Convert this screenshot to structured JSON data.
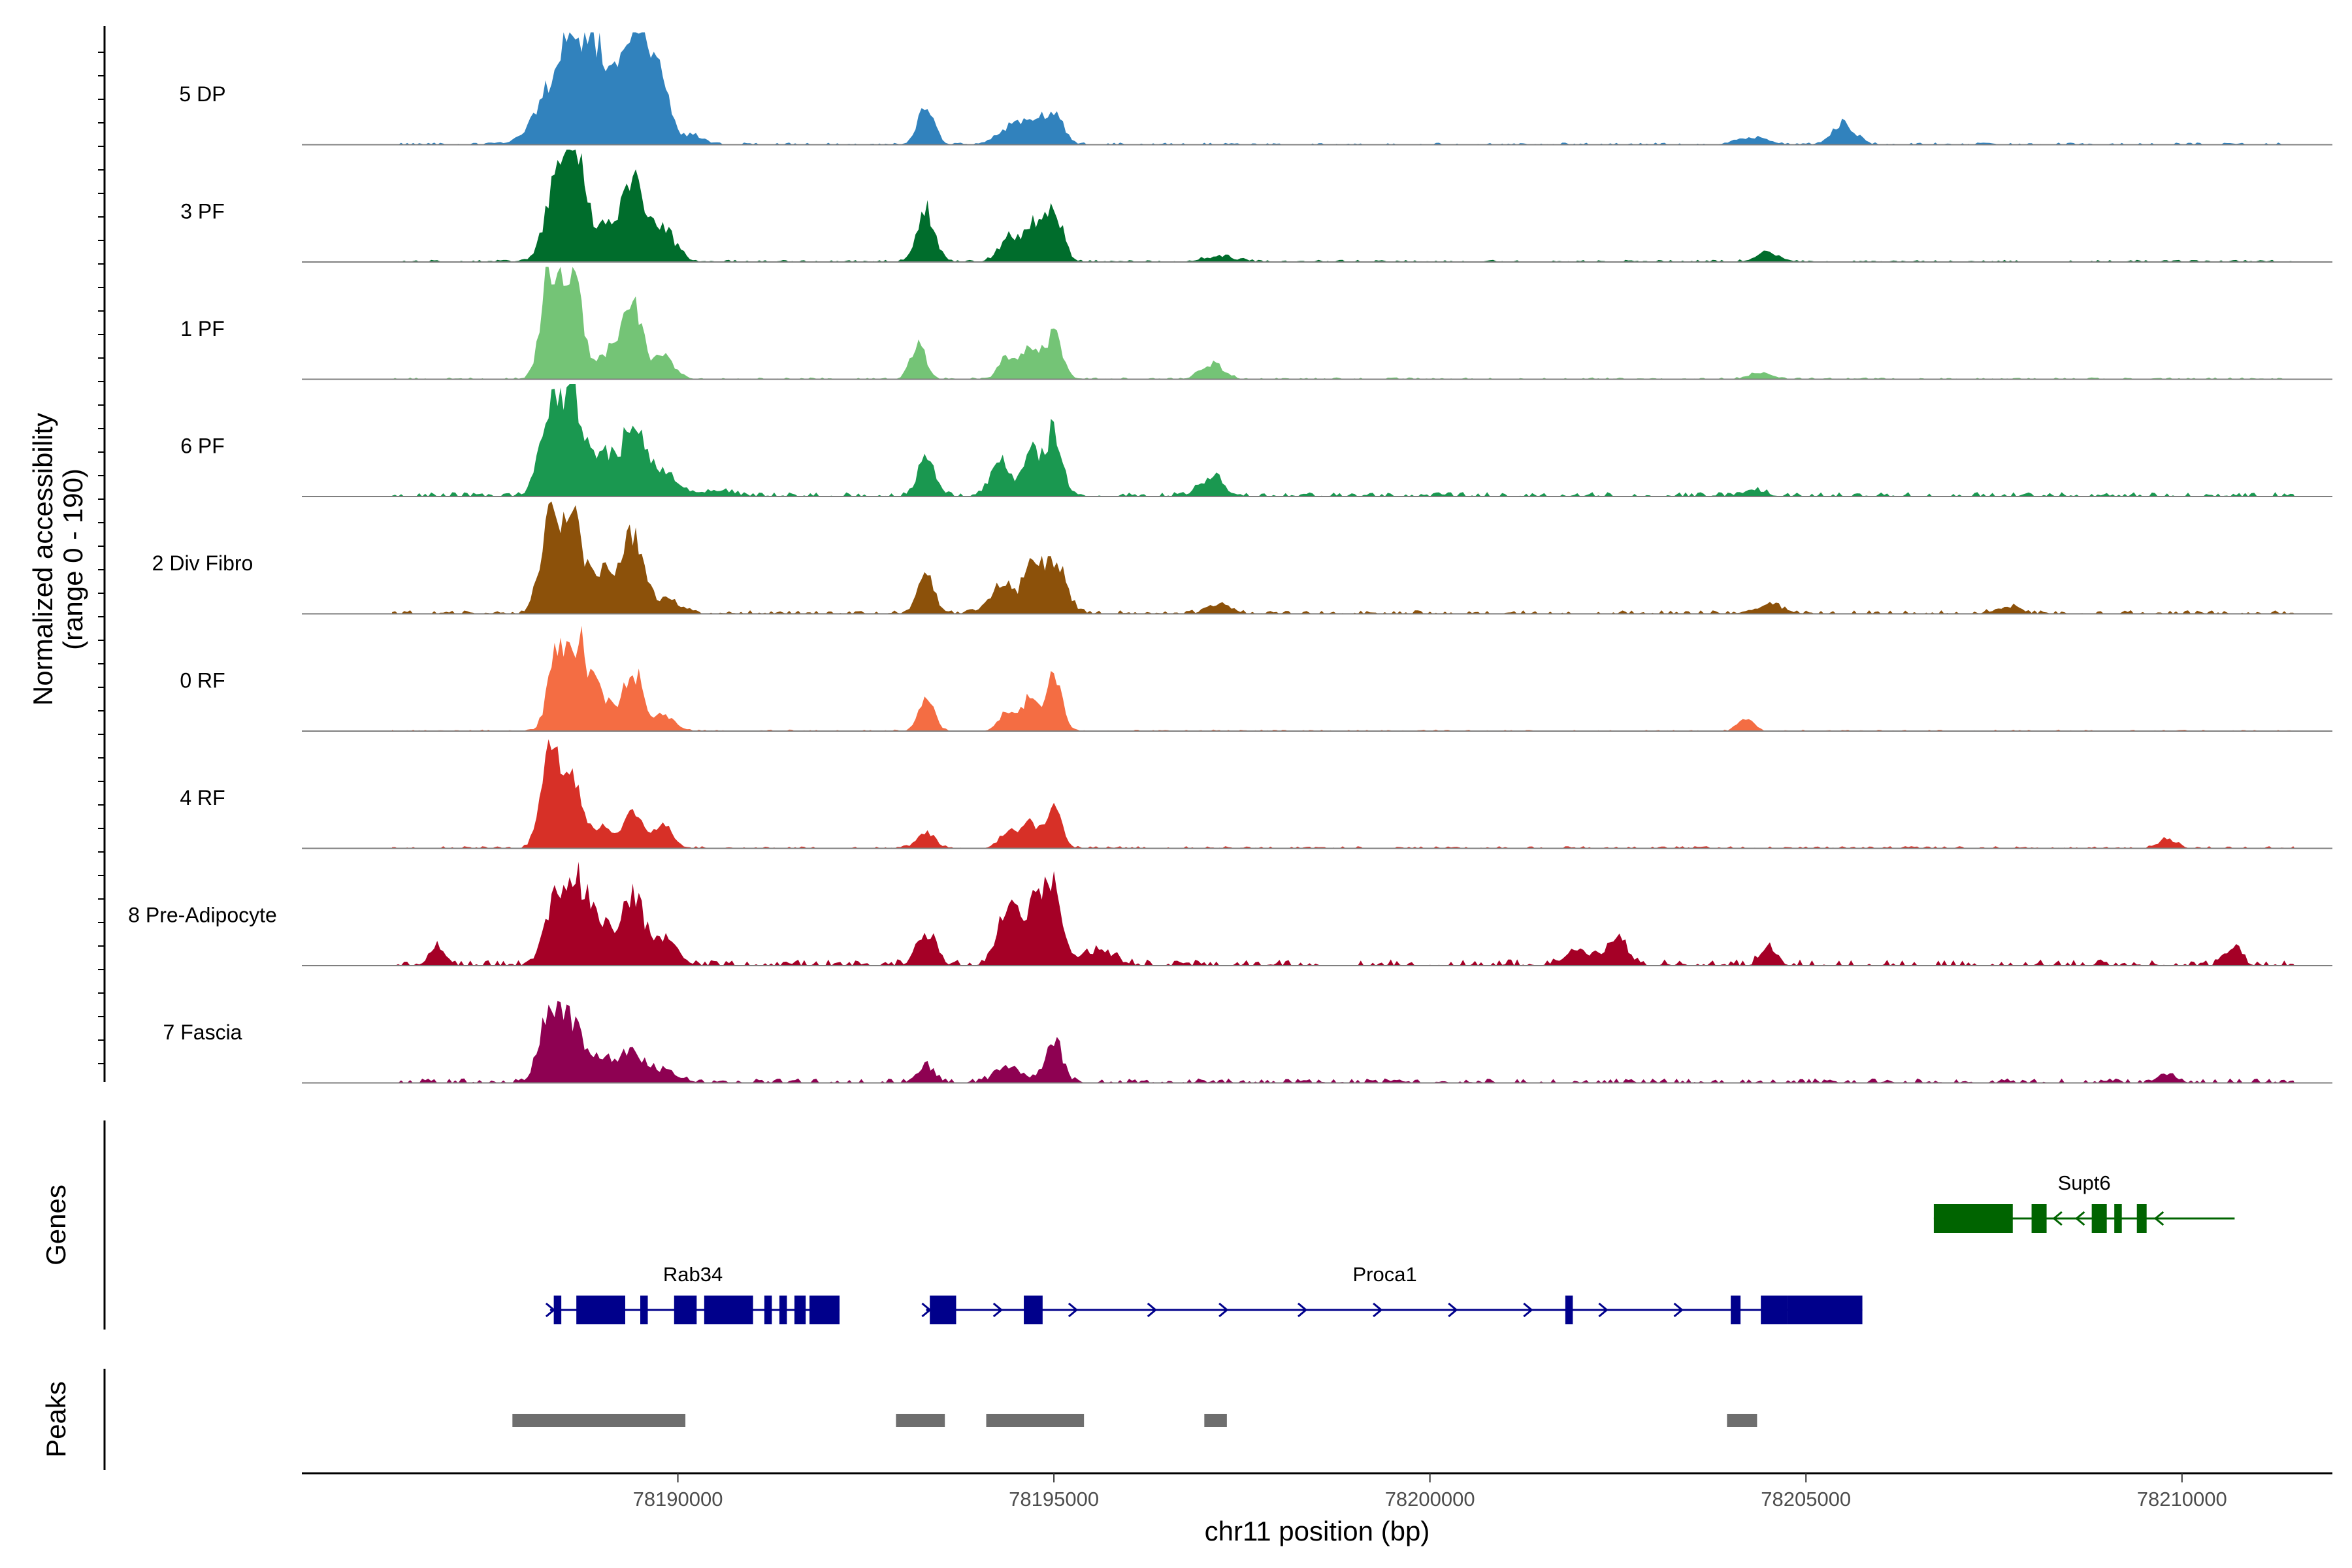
{
  "chart_data": {
    "type": "area",
    "y_axis_title_line1": "Normalized accessibility",
    "y_axis_title_line2": "(range 0 - 190)",
    "y_range": [
      0,
      190
    ],
    "x_axis_title": "chr11 position (bp)",
    "x_range": [
      78185000,
      78212000
    ],
    "x_ticks": [
      "78190000",
      "78195000",
      "78200000",
      "78205000",
      "78210000"
    ],
    "x_tick_values": [
      78190000,
      78195000,
      78200000,
      78205000,
      78210000
    ],
    "data_x_range": [
      78186200,
      78211500
    ],
    "tracks": [
      {
        "name": "5 DP",
        "color": "#3182bd",
        "noise": 0.012,
        "peaks": [
          [
            78188400,
            260,
            0.5
          ],
          [
            78188700,
            220,
            0.62
          ],
          [
            78189000,
            180,
            0.45
          ],
          [
            78189300,
            140,
            0.3
          ],
          [
            78189500,
            160,
            0.95
          ],
          [
            78189800,
            120,
            0.4
          ],
          [
            78190200,
            150,
            0.08
          ],
          [
            78193300,
            110,
            0.34
          ],
          [
            78194400,
            160,
            0.15
          ],
          [
            78194700,
            140,
            0.18
          ],
          [
            78195000,
            120,
            0.28
          ],
          [
            78204300,
            200,
            0.07
          ],
          [
            78205500,
            150,
            0.19
          ]
        ]
      },
      {
        "name": "3 PF",
        "color": "#006d2c",
        "noise": 0.012,
        "peaks": [
          [
            78188400,
            150,
            0.8
          ],
          [
            78188650,
            120,
            0.95
          ],
          [
            78189000,
            150,
            0.28
          ],
          [
            78189400,
            150,
            0.7
          ],
          [
            78189800,
            170,
            0.28
          ],
          [
            78193300,
            120,
            0.45
          ],
          [
            78194400,
            130,
            0.22
          ],
          [
            78194700,
            110,
            0.32
          ],
          [
            78195000,
            120,
            0.45
          ],
          [
            78197200,
            200,
            0.05
          ],
          [
            78204500,
            160,
            0.08
          ]
        ]
      },
      {
        "name": "1 PF",
        "color": "#74c476",
        "noise": 0.01,
        "peaks": [
          [
            78188300,
            120,
            0.95
          ],
          [
            78188600,
            130,
            0.92
          ],
          [
            78189100,
            140,
            0.25
          ],
          [
            78189400,
            120,
            0.68
          ],
          [
            78189800,
            150,
            0.2
          ],
          [
            78193200,
            100,
            0.32
          ],
          [
            78194400,
            120,
            0.2
          ],
          [
            78194700,
            100,
            0.3
          ],
          [
            78195000,
            110,
            0.42
          ],
          [
            78197100,
            150,
            0.14
          ],
          [
            78204400,
            150,
            0.06
          ]
        ]
      },
      {
        "name": "6 PF",
        "color": "#1a9850",
        "noise": 0.025,
        "peaks": [
          [
            78188300,
            140,
            0.75
          ],
          [
            78188600,
            140,
            0.82
          ],
          [
            78189000,
            140,
            0.38
          ],
          [
            78189400,
            140,
            0.68
          ],
          [
            78189800,
            180,
            0.22
          ],
          [
            78190500,
            220,
            0.05
          ],
          [
            78193300,
            110,
            0.38
          ],
          [
            78194300,
            130,
            0.3
          ],
          [
            78194700,
            110,
            0.4
          ],
          [
            78195000,
            110,
            0.56
          ],
          [
            78197100,
            150,
            0.18
          ],
          [
            78204300,
            150,
            0.06
          ]
        ]
      },
      {
        "name": "2 Div Fibro",
        "color": "#8c510a",
        "noise": 0.02,
        "peaks": [
          [
            78188300,
            130,
            0.82
          ],
          [
            78188600,
            130,
            0.88
          ],
          [
            78189000,
            150,
            0.4
          ],
          [
            78189400,
            130,
            0.72
          ],
          [
            78189800,
            180,
            0.13
          ],
          [
            78193300,
            110,
            0.34
          ],
          [
            78194300,
            160,
            0.25
          ],
          [
            78194700,
            120,
            0.38
          ],
          [
            78195000,
            150,
            0.45
          ],
          [
            78197200,
            150,
            0.09
          ],
          [
            78204500,
            200,
            0.07
          ],
          [
            78207700,
            150,
            0.07
          ]
        ]
      },
      {
        "name": "0 RF",
        "color": "#f46d43",
        "noise": 0.008,
        "peaks": [
          [
            78188400,
            120,
            0.7
          ],
          [
            78188700,
            120,
            0.72
          ],
          [
            78189000,
            130,
            0.3
          ],
          [
            78189400,
            120,
            0.55
          ],
          [
            78189800,
            140,
            0.15
          ],
          [
            78193300,
            100,
            0.3
          ],
          [
            78194400,
            120,
            0.18
          ],
          [
            78194700,
            100,
            0.3
          ],
          [
            78195000,
            100,
            0.48
          ],
          [
            78204200,
            100,
            0.1
          ]
        ]
      },
      {
        "name": "4 RF",
        "color": "#d73027",
        "noise": 0.012,
        "peaks": [
          [
            78188300,
            120,
            0.85
          ],
          [
            78188600,
            130,
            0.55
          ],
          [
            78189000,
            130,
            0.18
          ],
          [
            78189400,
            120,
            0.36
          ],
          [
            78189800,
            130,
            0.2
          ],
          [
            78193300,
            120,
            0.14
          ],
          [
            78194400,
            120,
            0.16
          ],
          [
            78194700,
            100,
            0.22
          ],
          [
            78195000,
            100,
            0.36
          ],
          [
            78209800,
            120,
            0.08
          ]
        ]
      },
      {
        "name": "8 Pre-Adipocyte",
        "color": "#a50026",
        "noise": 0.035,
        "peaks": [
          [
            78188400,
            150,
            0.6
          ],
          [
            78188700,
            150,
            0.62
          ],
          [
            78189000,
            150,
            0.3
          ],
          [
            78189400,
            140,
            0.6
          ],
          [
            78189800,
            170,
            0.25
          ],
          [
            78186800,
            100,
            0.15
          ],
          [
            78193300,
            120,
            0.28
          ],
          [
            78194400,
            140,
            0.55
          ],
          [
            78194800,
            140,
            0.55
          ],
          [
            78195000,
            120,
            0.48
          ],
          [
            78195600,
            200,
            0.14
          ],
          [
            78202500,
            120,
            0.25
          ],
          [
            78202000,
            200,
            0.12
          ],
          [
            78204500,
            100,
            0.16
          ],
          [
            78210700,
            100,
            0.15
          ]
        ]
      },
      {
        "name": "7 Fascia",
        "color": "#8e0152",
        "noise": 0.025,
        "peaks": [
          [
            78188300,
            130,
            0.68
          ],
          [
            78188600,
            140,
            0.48
          ],
          [
            78189000,
            180,
            0.2
          ],
          [
            78189400,
            150,
            0.26
          ],
          [
            78189800,
            200,
            0.1
          ],
          [
            78193300,
            120,
            0.14
          ],
          [
            78194400,
            180,
            0.14
          ],
          [
            78195000,
            110,
            0.4
          ],
          [
            78209800,
            120,
            0.08
          ]
        ]
      }
    ],
    "panel_labels": {
      "genes": "Genes",
      "peaks": "Peaks"
    },
    "genes": [
      {
        "name": "Supt6",
        "color": "#006400",
        "strand": "-",
        "row": 0,
        "start": 78206700,
        "end": 78210700,
        "exons": [
          [
            78206700,
            78207750
          ],
          [
            78208000,
            78208200
          ],
          [
            78208800,
            78209000
          ],
          [
            78209100,
            78209200
          ],
          [
            78209400,
            78209530
          ]
        ],
        "arrows": [
          78208350,
          78208650,
          78209700
        ]
      },
      {
        "name": "Rab34",
        "color": "#00008b",
        "strand": "+",
        "row": 1,
        "start": 78188300,
        "end": 78192150,
        "exons": [
          [
            78188350,
            78188450
          ],
          [
            78188650,
            78189300
          ],
          [
            78189500,
            78189600
          ],
          [
            78189950,
            78190250
          ],
          [
            78190350,
            78191000
          ],
          [
            78191150,
            78191250
          ],
          [
            78191350,
            78191450
          ],
          [
            78191550,
            78191700
          ],
          [
            78191750,
            78192150
          ]
        ],
        "arrows": [
          78188300
        ]
      },
      {
        "name": "Proca1",
        "color": "#00008b",
        "strand": "+",
        "row": 1,
        "start": 78193300,
        "end": 78205750,
        "exons": [
          [
            78193350,
            78193700
          ],
          [
            78194600,
            78194850
          ],
          [
            78201800,
            78201900
          ],
          [
            78204000,
            78204130
          ],
          [
            78204400,
            78204750
          ],
          [
            78204750,
            78205750
          ]
        ],
        "arrows": [
          78193300,
          78194250,
          78195250,
          78196300,
          78197250,
          78198300,
          78199300,
          78200300,
          78201300,
          78202300,
          78203300
        ]
      }
    ],
    "peak_regions": [
      [
        78187800,
        78190100
      ],
      [
        78192900,
        78193550
      ],
      [
        78194100,
        78195400
      ],
      [
        78197000,
        78197300
      ],
      [
        78203950,
        78204350
      ]
    ],
    "peak_color": "#6e6e6e",
    "label_positions": {
      "Rab34": 78190200,
      "Proca1": 78199400,
      "Supt6": 78208700
    }
  }
}
